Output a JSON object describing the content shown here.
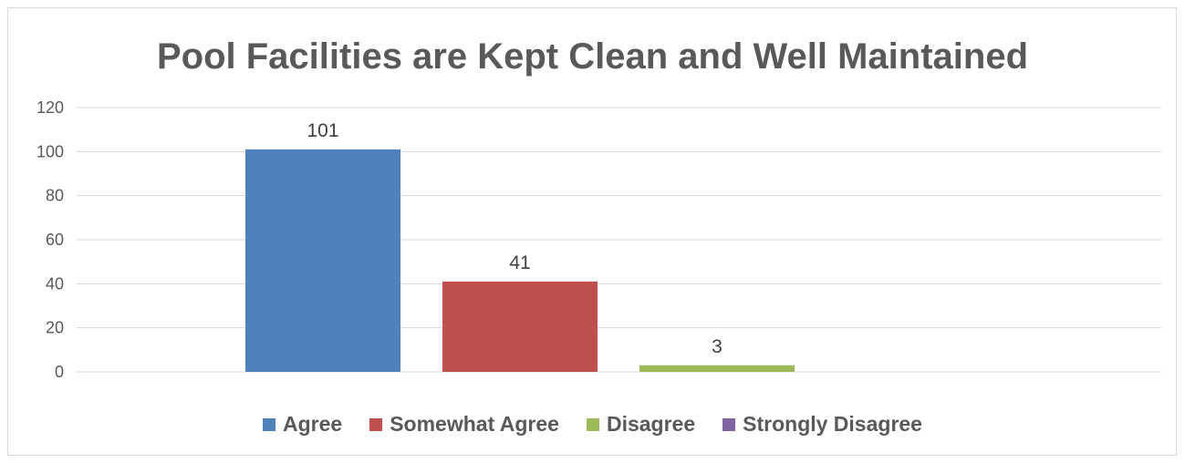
{
  "chart_data": {
    "type": "bar",
    "title": "Pool Facilities are Kept Clean and Well Maintained",
    "xlabel": "",
    "ylabel": "",
    "categories": [
      "Agree",
      "Somewhat Agree",
      "Disagree",
      "Strongly Disagree"
    ],
    "values": [
      101,
      41,
      3,
      0
    ],
    "data_labels": [
      "101",
      "41",
      "3",
      ""
    ],
    "colors": [
      "#4f81bd",
      "#c0504d",
      "#9bbb59",
      "#8064a2"
    ],
    "ylim": [
      0,
      120
    ],
    "yticks": [
      0,
      20,
      40,
      60,
      80,
      100,
      120
    ],
    "grid": true,
    "legend_position": "bottom"
  }
}
